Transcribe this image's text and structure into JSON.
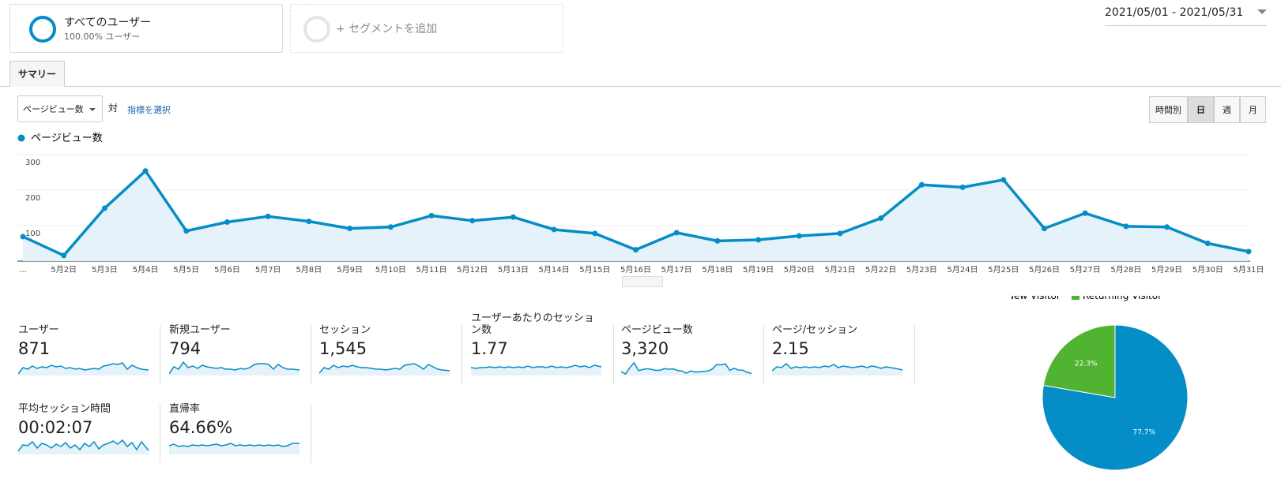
{
  "segment": {
    "name": "すべてのユーザー",
    "detail": "100.00% ユーザー"
  },
  "add_segment": "+ セグメントを追加",
  "date_range": "2021/05/01 - 2021/05/31",
  "tab": "サマリー",
  "metric_select": "ページビュー数",
  "versus": "対",
  "choose_metric": "指標を選択",
  "granularity": [
    "時間別",
    "日",
    "週",
    "月"
  ],
  "chart_data": [
    {
      "type": "line",
      "categories": [
        "…",
        "5月2日",
        "5月3日",
        "5月4日",
        "5月5日",
        "5月6日",
        "5月7日",
        "5月8日",
        "5月9日",
        "5月10日",
        "5月11日",
        "5月12日",
        "5月13日",
        "5月14日",
        "5月15日",
        "5月16日",
        "5月17日",
        "5月18日",
        "5月19日",
        "5月20日",
        "5月21日",
        "5月22日",
        "5月23日",
        "5月24日",
        "5月25日",
        "5月26日",
        "5月27日",
        "5月28日",
        "5月29日",
        "5月30日",
        "5月31日"
      ],
      "series": [
        {
          "name": "ページビュー数",
          "color": "#058dc7",
          "values": [
            69,
            16,
            149,
            254,
            85,
            110,
            126,
            112,
            92,
            96,
            128,
            114,
            124,
            89,
            78,
            32,
            80,
            57,
            60,
            71,
            78,
            121,
            215,
            208,
            229,
            92,
            135,
            98,
            96,
            50,
            27
          ]
        }
      ],
      "ylim": [
        0,
        300
      ],
      "yticks": [
        100,
        200,
        300
      ],
      "grid": true
    },
    {
      "type": "pie",
      "categories": [
        "New Visitor",
        "Returning Visitor"
      ],
      "values": [
        77.7,
        22.3
      ],
      "value_labels": [
        "77.7%",
        "22.3%"
      ],
      "colors": [
        "#058dc7",
        "#50b432"
      ]
    }
  ],
  "metrics": [
    {
      "label": "ユーザー",
      "value": "871"
    },
    {
      "label": "新規ユーザー",
      "value": "794"
    },
    {
      "label": "セッション",
      "value": "1,545"
    },
    {
      "label": "ユーザーあたりのセッション数",
      "value": "1.77"
    },
    {
      "label": "ページビュー数",
      "value": "3,320"
    },
    {
      "label": "ページ/セッション",
      "value": "2.15"
    },
    {
      "label": "平均セッション時間",
      "value": "00:02:07"
    },
    {
      "label": "直帰率",
      "value": "64.66%"
    }
  ]
}
